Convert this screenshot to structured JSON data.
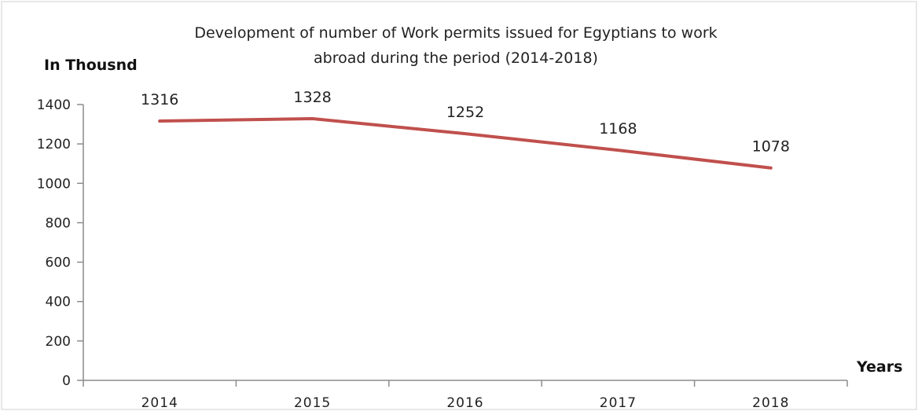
{
  "chart_data": {
    "type": "line",
    "title_lines": [
      "Development of number of Work permits issued for Egyptians to work",
      "abroad during the period (2014-2018)"
    ],
    "ylabel": "In Thousnd",
    "xlabel": "Years",
    "categories": [
      "2014",
      "2015",
      "2016",
      "2017",
      "2018"
    ],
    "series": [
      {
        "values": [
          1316,
          1328,
          1252,
          1168,
          1078
        ],
        "color": "#c0504d"
      }
    ],
    "data_labels": [
      "1316",
      "1328",
      "1252",
      "1168",
      "1078"
    ],
    "ylim": [
      0,
      1400
    ],
    "yticks": [
      0,
      200,
      400,
      600,
      800,
      1000,
      1200,
      1400
    ],
    "grid": false,
    "legend": "none"
  }
}
